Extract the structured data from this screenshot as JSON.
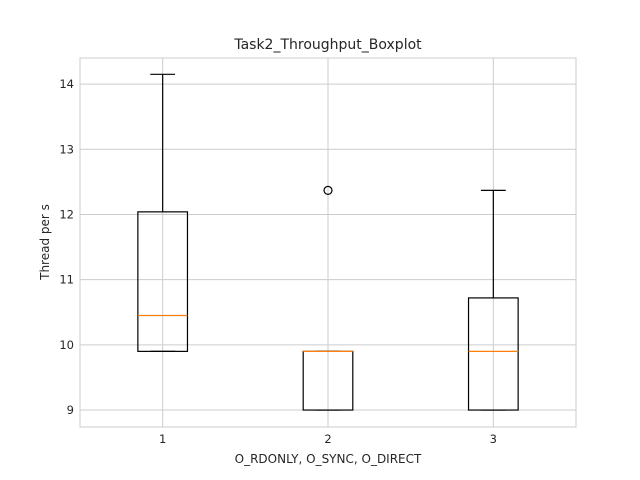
{
  "chart_data": {
    "type": "boxplot",
    "title": "Task2_Throughput_Boxplot",
    "xlabel": "O_RDONLY, O_SYNC, O_DIRECT",
    "ylabel": "Thread per s",
    "categories": [
      "1",
      "2",
      "3"
    ],
    "boxes": [
      {
        "category": "1",
        "whisker_low": 9.9,
        "q1": 9.9,
        "median": 10.45,
        "q3": 12.04,
        "whisker_high": 14.15,
        "outliers": []
      },
      {
        "category": "2",
        "whisker_low": 9.0,
        "q1": 9.0,
        "median": 9.9,
        "q3": 9.9,
        "whisker_high": 9.9,
        "outliers": [
          12.37
        ]
      },
      {
        "category": "3",
        "whisker_low": 9.0,
        "q1": 9.0,
        "median": 9.9,
        "q3": 10.72,
        "whisker_high": 12.37,
        "outliers": []
      }
    ],
    "yticks": [
      9,
      10,
      11,
      12,
      13,
      14
    ],
    "ylim": [
      8.74,
      14.4
    ],
    "xlim": [
      0.5,
      3.5
    ],
    "grid": true,
    "colors": {
      "box": "#000000",
      "median": "#ff7f0e",
      "grid": "#cccccc",
      "frame": "#cccccc"
    }
  }
}
